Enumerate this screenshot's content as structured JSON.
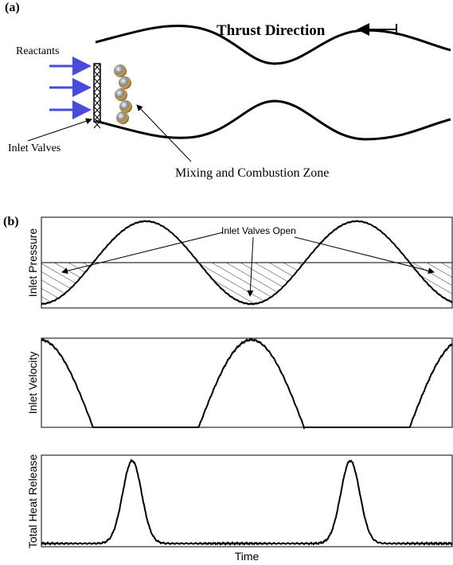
{
  "panel_a": {
    "label": "(a)",
    "thrust_label": "Thrust Direction",
    "reactants_label": "Reactants",
    "inlet_valves_label": "Inlet Valves",
    "zone_label": "Mixing and Combustion Zone"
  },
  "panel_b": {
    "label": "(b)",
    "annotation": "Inlet Valves Open",
    "plots": [
      {
        "ylabel": "Inlet Pressure"
      },
      {
        "ylabel": "Inlet Velocity"
      },
      {
        "ylabel": "Total Heat Release"
      }
    ],
    "xlabel": "Time"
  }
}
